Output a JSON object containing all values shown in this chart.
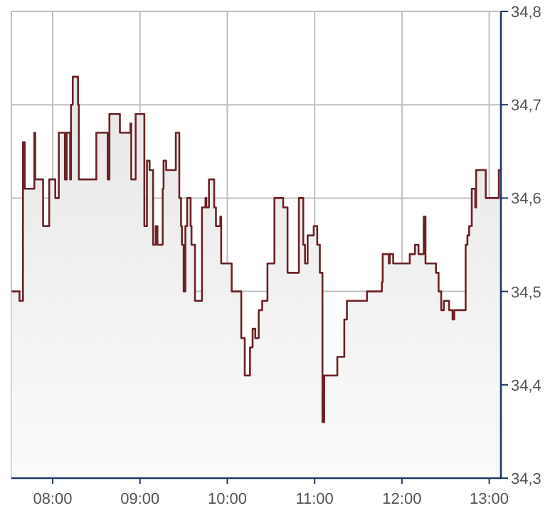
{
  "chart_data": {
    "type": "area",
    "xlim": [
      7.527,
      13.134
    ],
    "ylim": [
      34.3,
      34.8
    ],
    "xticks": [
      {
        "value": 8,
        "label": "08:00"
      },
      {
        "value": 9,
        "label": "09:00"
      },
      {
        "value": 10,
        "label": "10:00"
      },
      {
        "value": 11,
        "label": "11:00"
      },
      {
        "value": 12,
        "label": "12:00"
      },
      {
        "value": 13,
        "label": "13:00"
      }
    ],
    "yticks": [
      {
        "value": 34.3,
        "label": "34,3"
      },
      {
        "value": 34.4,
        "label": "34,4"
      },
      {
        "value": 34.5,
        "label": "34,5"
      },
      {
        "value": 34.6,
        "label": "34,6"
      },
      {
        "value": 34.7,
        "label": "34,7"
      },
      {
        "value": 34.8,
        "label": "34,8"
      }
    ],
    "grid": true,
    "series": [
      {
        "color": "#6b2226",
        "x": [
          7.53,
          7.62,
          7.62,
          7.66,
          7.66,
          7.68,
          7.68,
          7.79,
          7.79,
          7.8,
          7.8,
          7.89,
          7.89,
          7.96,
          7.96,
          8.03,
          8.03,
          8.07,
          8.07,
          8.14,
          8.14,
          8.16,
          8.16,
          8.2,
          8.2,
          8.21,
          8.21,
          8.23,
          8.23,
          8.29,
          8.29,
          8.3,
          8.3,
          8.5,
          8.5,
          8.63,
          8.63,
          8.65,
          8.65,
          8.77,
          8.77,
          8.89,
          8.89,
          8.9,
          8.9,
          8.95,
          8.95,
          9.05,
          9.05,
          9.08,
          9.08,
          9.11,
          9.11,
          9.15,
          9.15,
          9.18,
          9.18,
          9.2,
          9.2,
          9.26,
          9.26,
          9.27,
          9.27,
          9.3,
          9.3,
          9.41,
          9.41,
          9.45,
          9.45,
          9.47,
          9.47,
          9.48,
          9.48,
          9.5,
          9.5,
          9.52,
          9.52,
          9.54,
          9.54,
          9.58,
          9.58,
          9.59,
          9.59,
          9.63,
          9.63,
          9.71,
          9.71,
          9.75,
          9.75,
          9.76,
          9.76,
          9.79,
          9.79,
          9.85,
          9.85,
          9.87,
          9.87,
          9.92,
          9.92,
          9.93,
          9.93,
          10.05,
          10.05,
          10.16,
          10.16,
          10.2,
          10.2,
          10.26,
          10.26,
          10.29,
          10.29,
          10.32,
          10.32,
          10.36,
          10.36,
          10.4,
          10.4,
          10.46,
          10.46,
          10.54,
          10.54,
          10.64,
          10.64,
          10.69,
          10.69,
          10.82,
          10.82,
          10.87,
          10.87,
          10.89,
          10.89,
          10.92,
          10.92,
          10.99,
          10.99,
          11.03,
          11.03,
          11.06,
          11.06,
          11.09,
          11.09,
          11.11,
          11.11,
          11.26,
          11.26,
          11.34,
          11.34,
          11.37,
          11.37,
          11.6,
          11.6,
          11.77,
          11.77,
          11.78,
          11.78,
          11.85,
          11.85,
          11.86,
          11.86,
          11.9,
          11.9,
          12.09,
          12.09,
          12.15,
          12.15,
          12.19,
          12.19,
          12.25,
          12.25,
          12.27,
          12.27,
          12.39,
          12.39,
          12.42,
          12.42,
          12.45,
          12.45,
          12.48,
          12.48,
          12.54,
          12.54,
          12.58,
          12.58,
          12.6,
          12.6,
          12.73,
          12.73,
          12.75,
          12.75,
          12.77,
          12.77,
          12.8,
          12.8,
          12.84,
          12.84,
          12.85,
          12.85,
          12.96,
          12.96,
          13.11,
          13.11,
          13.13
        ],
        "values": [
          34.5,
          34.5,
          34.49,
          34.49,
          34.66,
          34.66,
          34.61,
          34.61,
          34.67,
          34.67,
          34.62,
          34.62,
          34.57,
          34.57,
          34.62,
          34.62,
          34.6,
          34.6,
          34.67,
          34.67,
          34.62,
          34.62,
          34.67,
          34.67,
          34.62,
          34.62,
          34.7,
          34.7,
          34.73,
          34.73,
          34.7,
          34.7,
          34.62,
          34.62,
          34.67,
          34.67,
          34.62,
          34.62,
          34.69,
          34.69,
          34.67,
          34.67,
          34.68,
          34.68,
          34.62,
          34.62,
          34.69,
          34.69,
          34.57,
          34.57,
          34.64,
          34.64,
          34.63,
          34.63,
          34.55,
          34.55,
          34.57,
          34.57,
          34.55,
          34.55,
          34.61,
          34.61,
          34.64,
          34.64,
          34.63,
          34.63,
          34.67,
          34.67,
          34.6,
          34.6,
          34.57,
          34.57,
          34.55,
          34.55,
          34.5,
          34.5,
          34.57,
          34.57,
          34.6,
          34.6,
          34.57,
          34.57,
          34.55,
          34.55,
          34.49,
          34.49,
          34.59,
          34.59,
          34.6,
          34.6,
          34.59,
          34.59,
          34.62,
          34.62,
          34.59,
          34.59,
          34.57,
          34.57,
          34.58,
          34.58,
          34.53,
          34.53,
          34.5,
          34.5,
          34.45,
          34.45,
          34.41,
          34.41,
          34.44,
          34.44,
          34.46,
          34.46,
          34.45,
          34.45,
          34.48,
          34.48,
          34.49,
          34.49,
          34.53,
          34.53,
          34.6,
          34.6,
          34.59,
          34.59,
          34.52,
          34.52,
          34.6,
          34.6,
          34.55,
          34.55,
          34.53,
          34.53,
          34.56,
          34.56,
          34.57,
          34.57,
          34.55,
          34.55,
          34.52,
          34.52,
          34.36,
          34.36,
          34.41,
          34.41,
          34.43,
          34.43,
          34.47,
          34.47,
          34.49,
          34.49,
          34.5,
          34.5,
          34.51,
          34.51,
          34.54,
          34.54,
          34.53,
          34.53,
          34.54,
          34.54,
          34.53,
          34.53,
          34.54,
          34.54,
          34.55,
          34.55,
          34.54,
          34.54,
          34.58,
          34.58,
          34.53,
          34.53,
          34.52,
          34.52,
          34.5,
          34.5,
          34.48,
          34.48,
          34.49,
          34.49,
          34.48,
          34.48,
          34.47,
          34.47,
          34.48,
          34.48,
          34.55,
          34.55,
          34.56,
          34.56,
          34.57,
          34.57,
          34.61,
          34.61,
          34.59,
          34.59,
          34.63,
          34.63,
          34.6,
          34.6,
          34.63,
          34.63
        ]
      }
    ]
  }
}
